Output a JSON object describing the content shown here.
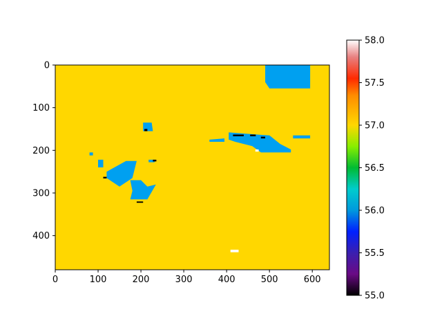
{
  "chart_data": {
    "type": "heatmap",
    "title": "",
    "xlabel": "",
    "ylabel": "",
    "xlim": [
      0,
      640
    ],
    "ylim": [
      480,
      0
    ],
    "x_ticks": [
      "0",
      "100",
      "200",
      "300",
      "400",
      "500",
      "600"
    ],
    "y_ticks": [
      "0",
      "100",
      "200",
      "300",
      "400"
    ],
    "colormap": "nipy_spectral",
    "colorbar": {
      "range": [
        55.0,
        58.0
      ],
      "ticks": [
        "55.0",
        "55.5",
        "56.0",
        "56.5",
        "57.0",
        "57.5",
        "58.0"
      ],
      "gradient": [
        {
          "v": 55.0,
          "color": "#000000"
        },
        {
          "v": 55.25,
          "color": "#6a0a85"
        },
        {
          "v": 55.5,
          "color": "#3a1fb0"
        },
        {
          "v": 55.75,
          "color": "#0020ff"
        },
        {
          "v": 56.0,
          "color": "#0099dd"
        },
        {
          "v": 56.25,
          "color": "#00cccc"
        },
        {
          "v": 56.5,
          "color": "#00bb33"
        },
        {
          "v": 56.75,
          "color": "#88ee00"
        },
        {
          "v": 57.0,
          "color": "#ffd700"
        },
        {
          "v": 57.35,
          "color": "#ff8c00"
        },
        {
          "v": 57.55,
          "color": "#ff2a00"
        },
        {
          "v": 57.8,
          "color": "#e88080"
        },
        {
          "v": 58.0,
          "color": "#ffffff"
        }
      ]
    },
    "background_value": 57.0,
    "background_color": "#ffd700",
    "regions": [
      {
        "value": 56.0,
        "color": "#00a0f0",
        "polygon": [
          [
            490,
            0
          ],
          [
            595,
            0
          ],
          [
            595,
            55
          ],
          [
            500,
            55
          ],
          [
            490,
            40
          ]
        ]
      },
      {
        "value": 56.0,
        "color": "#00a0f0",
        "polygon": [
          [
            405,
            158
          ],
          [
            500,
            165
          ],
          [
            525,
            185
          ],
          [
            550,
            198
          ],
          [
            550,
            205
          ],
          [
            480,
            205
          ],
          [
            460,
            190
          ],
          [
            420,
            180
          ],
          [
            405,
            175
          ]
        ]
      },
      {
        "value": 56.0,
        "color": "#00a0f0",
        "polygon": [
          [
            360,
            175
          ],
          [
            395,
            172
          ],
          [
            395,
            180
          ],
          [
            360,
            180
          ]
        ]
      },
      {
        "value": 56.0,
        "color": "#00a0f0",
        "polygon": [
          [
            555,
            165
          ],
          [
            595,
            165
          ],
          [
            595,
            172
          ],
          [
            555,
            172
          ]
        ]
      },
      {
        "value": 56.0,
        "color": "#00a0f0",
        "polygon": [
          [
            205,
            135
          ],
          [
            225,
            135
          ],
          [
            228,
            155
          ],
          [
            205,
            155
          ]
        ]
      },
      {
        "value": 56.0,
        "color": "#00a0f0",
        "polygon": [
          [
            120,
            250
          ],
          [
            165,
            225
          ],
          [
            190,
            225
          ],
          [
            180,
            265
          ],
          [
            150,
            285
          ],
          [
            120,
            265
          ]
        ]
      },
      {
        "value": 56.0,
        "color": "#00a0f0",
        "polygon": [
          [
            175,
            270
          ],
          [
            200,
            270
          ],
          [
            215,
            285
          ],
          [
            235,
            280
          ],
          [
            215,
            315
          ],
          [
            175,
            315
          ],
          [
            180,
            295
          ]
        ]
      },
      {
        "value": 56.0,
        "color": "#00a0f0",
        "polygon": [
          [
            80,
            205
          ],
          [
            88,
            205
          ],
          [
            88,
            212
          ],
          [
            80,
            212
          ]
        ]
      },
      {
        "value": 56.0,
        "color": "#00a0f0",
        "polygon": [
          [
            100,
            222
          ],
          [
            112,
            222
          ],
          [
            112,
            240
          ],
          [
            100,
            240
          ]
        ]
      },
      {
        "value": 56.0,
        "color": "#00a0f0",
        "polygon": [
          [
            218,
            222
          ],
          [
            232,
            222
          ],
          [
            232,
            228
          ],
          [
            218,
            228
          ]
        ]
      },
      {
        "value": 55.0,
        "color": "#000000",
        "polygon": [
          [
            415,
            163
          ],
          [
            440,
            163
          ],
          [
            440,
            167
          ],
          [
            415,
            167
          ]
        ]
      },
      {
        "value": 55.0,
        "color": "#000000",
        "polygon": [
          [
            455,
            163
          ],
          [
            468,
            163
          ],
          [
            468,
            167
          ],
          [
            455,
            167
          ]
        ]
      },
      {
        "value": 55.0,
        "color": "#000000",
        "polygon": [
          [
            480,
            168
          ],
          [
            490,
            168
          ],
          [
            490,
            172
          ],
          [
            480,
            172
          ]
        ]
      },
      {
        "value": 55.0,
        "color": "#000000",
        "polygon": [
          [
            208,
            150
          ],
          [
            215,
            150
          ],
          [
            215,
            155
          ],
          [
            208,
            155
          ]
        ]
      },
      {
        "value": 55.0,
        "color": "#000000",
        "polygon": [
          [
            112,
            262
          ],
          [
            120,
            262
          ],
          [
            120,
            266
          ],
          [
            112,
            266
          ]
        ]
      },
      {
        "value": 55.0,
        "color": "#000000",
        "polygon": [
          [
            190,
            320
          ],
          [
            205,
            320
          ],
          [
            205,
            323
          ],
          [
            190,
            323
          ]
        ]
      },
      {
        "value": 55.0,
        "color": "#000000",
        "polygon": [
          [
            228,
            222
          ],
          [
            236,
            222
          ],
          [
            236,
            226
          ],
          [
            228,
            226
          ]
        ]
      },
      {
        "value": 58.0,
        "color": "#ffffff",
        "polygon": [
          [
            409,
            433
          ],
          [
            428,
            433
          ],
          [
            428,
            439
          ],
          [
            409,
            439
          ]
        ]
      },
      {
        "value": 58.0,
        "color": "#ffffff",
        "polygon": [
          [
            467,
            198
          ],
          [
            475,
            198
          ],
          [
            475,
            203
          ],
          [
            467,
            203
          ]
        ]
      }
    ]
  }
}
